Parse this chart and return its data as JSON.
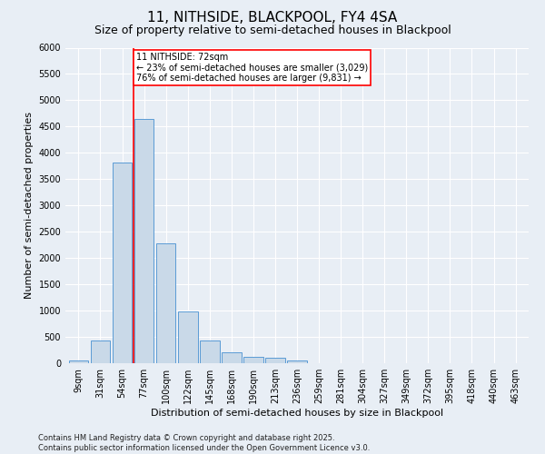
{
  "title": "11, NITHSIDE, BLACKPOOL, FY4 4SA",
  "subtitle": "Size of property relative to semi-detached houses in Blackpool",
  "xlabel": "Distribution of semi-detached houses by size in Blackpool",
  "ylabel": "Number of semi-detached properties",
  "categories": [
    "9sqm",
    "31sqm",
    "54sqm",
    "77sqm",
    "100sqm",
    "122sqm",
    "145sqm",
    "168sqm",
    "190sqm",
    "213sqm",
    "236sqm",
    "259sqm",
    "281sqm",
    "304sqm",
    "327sqm",
    "349sqm",
    "372sqm",
    "395sqm",
    "418sqm",
    "440sqm",
    "463sqm"
  ],
  "values": [
    50,
    430,
    3820,
    4650,
    2280,
    990,
    430,
    205,
    120,
    110,
    50,
    0,
    0,
    0,
    0,
    0,
    0,
    0,
    0,
    0,
    0
  ],
  "bar_color": "#c9d9e8",
  "bar_edge_color": "#5b9bd5",
  "vline_color": "red",
  "vline_pos": 2.5,
  "annotation_text": "11 NITHSIDE: 72sqm\n← 23% of semi-detached houses are smaller (3,029)\n76% of semi-detached houses are larger (9,831) →",
  "ylim": [
    0,
    6000
  ],
  "yticks": [
    0,
    500,
    1000,
    1500,
    2000,
    2500,
    3000,
    3500,
    4000,
    4500,
    5000,
    5500,
    6000
  ],
  "footer": "Contains HM Land Registry data © Crown copyright and database right 2025.\nContains public sector information licensed under the Open Government Licence v3.0.",
  "bg_color": "#e8eef5",
  "grid_color": "#ffffff",
  "title_fontsize": 11,
  "subtitle_fontsize": 9,
  "axis_label_fontsize": 8,
  "tick_fontsize": 7,
  "annotation_fontsize": 7,
  "footer_fontsize": 6
}
